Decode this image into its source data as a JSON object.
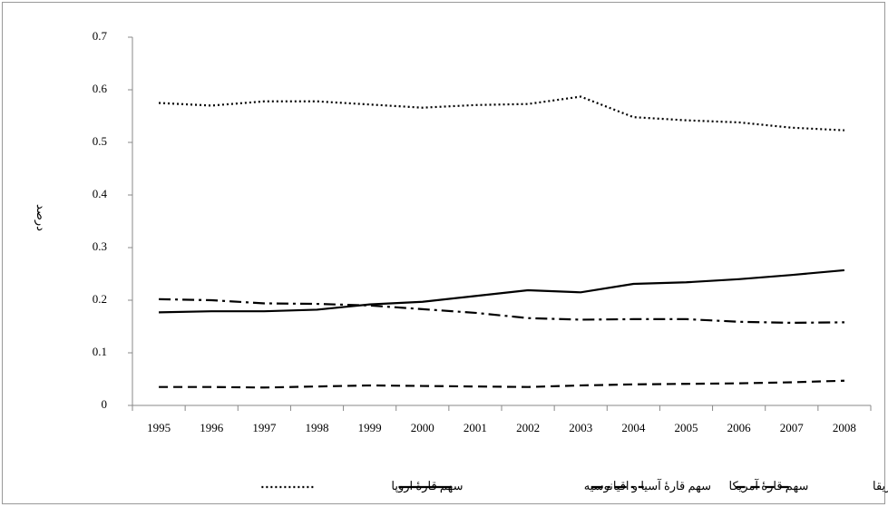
{
  "chart_data": {
    "type": "line",
    "y_label": "درصد",
    "categories": [
      "1995",
      "1996",
      "1997",
      "1998",
      "1999",
      "2000",
      "2001",
      "2002",
      "2003",
      "2004",
      "2005",
      "2006",
      "2007",
      "2008"
    ],
    "series": [
      {
        "name": "سهم قارهٔ آفریقا",
        "color": "#000000",
        "dash": "dashed",
        "values": [
          0.035,
          0.035,
          0.034,
          0.036,
          0.038,
          0.037,
          0.036,
          0.035,
          0.038,
          0.04,
          0.041,
          0.042,
          0.044,
          0.047
        ]
      },
      {
        "name": "سهم قارهٔ آمریکا",
        "color": "#000000",
        "dash": "dashdot",
        "values": [
          0.202,
          0.2,
          0.194,
          0.193,
          0.19,
          0.183,
          0.176,
          0.166,
          0.163,
          0.164,
          0.164,
          0.159,
          0.157,
          0.158
        ]
      },
      {
        "name": "سهم قارهٔ آسیا و اقیانوسیه",
        "color": "#000000",
        "dash": "solid",
        "values": [
          0.177,
          0.179,
          0.179,
          0.182,
          0.192,
          0.197,
          0.208,
          0.219,
          0.215,
          0.231,
          0.234,
          0.24,
          0.248,
          0.257
        ]
      },
      {
        "name": "سهم قارهٔ اروپا",
        "color": "#000000",
        "dash": "dotted",
        "values": [
          0.575,
          0.57,
          0.578,
          0.578,
          0.572,
          0.566,
          0.571,
          0.573,
          0.587,
          0.548,
          0.542,
          0.538,
          0.528,
          0.523
        ]
      }
    ],
    "ylim": [
      0,
      0.7
    ],
    "yticks": [
      0,
      0.1,
      0.2,
      0.3,
      0.4,
      0.5,
      0.6,
      0.7
    ],
    "grid": false,
    "legend": "bottom"
  }
}
